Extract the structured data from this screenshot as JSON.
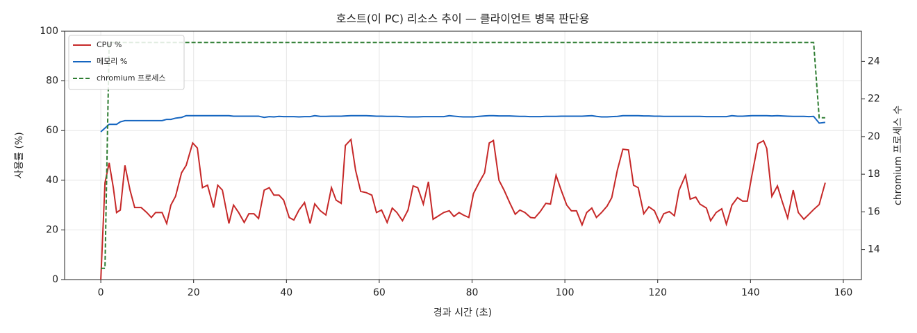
{
  "chart_data": {
    "type": "line",
    "title": "호스트(이 PC) 리소스 추이 — 클라이언트 병목 판단용",
    "xlabel": "경과 시간 (초)",
    "ylabel": "사용률 (%)",
    "y2label": "chromium 프로세스 수",
    "x": [
      0,
      0.9,
      1.8,
      2.7,
      3.4,
      4.2,
      5.2,
      6.3,
      7.3,
      8.7,
      9.9,
      10.9,
      11.8,
      13.2,
      14.2,
      15.1,
      16.1,
      17.4,
      18.4,
      19.8,
      20.8,
      21.9,
      23.0,
      24.3,
      25.2,
      26.2,
      27.6,
      28.6,
      29.7,
      30.9,
      31.9,
      33.0,
      34.0,
      35.2,
      36.3,
      37.3,
      38.4,
      39.4,
      40.6,
      41.6,
      42.7,
      43.9,
      45.1,
      46.1,
      47.3,
      48.5,
      49.7,
      50.7,
      51.8,
      52.7,
      53.9,
      54.9,
      56.0,
      57.2,
      58.4,
      59.4,
      60.5,
      61.7,
      62.8,
      63.8,
      65.0,
      66.2,
      67.3,
      68.3,
      69.5,
      70.6,
      71.6,
      72.8,
      73.9,
      75.1,
      76.1,
      77.2,
      78.1,
      79.3,
      80.3,
      81.5,
      82.7,
      83.7,
      84.6,
      85.8,
      86.9,
      88.1,
      89.3,
      90.3,
      91.4,
      92.6,
      93.5,
      94.7,
      95.9,
      96.9,
      98.1,
      99.2,
      100.4,
      101.4,
      102.5,
      103.7,
      104.7,
      105.8,
      106.8,
      107.9,
      109.1,
      110.1,
      111.3,
      112.5,
      113.7,
      114.8,
      115.8,
      117.0,
      118.1,
      119.3,
      120.4,
      121.3,
      122.5,
      123.6,
      124.6,
      126.0,
      127.0,
      128.2,
      129.1,
      130.5,
      131.4,
      132.6,
      133.8,
      134.8,
      136.0,
      137.2,
      138.3,
      139.3,
      140.3,
      141.6,
      142.8,
      143.5,
      144.6,
      145.8,
      146.8,
      148.0,
      149.2,
      150.3,
      151.5,
      152.6,
      153.6,
      154.8,
      156.1
    ],
    "series": [
      {
        "name": "CPU %",
        "color": "#c62828",
        "linestyle": "solid",
        "values": [
          0,
          39,
          47,
          37,
          27,
          28,
          46,
          36,
          29,
          29,
          27,
          25,
          27,
          27,
          22.6,
          30,
          33.5,
          43,
          46,
          55,
          53,
          37,
          38,
          29,
          38,
          36,
          22.6,
          30,
          27,
          23,
          26.5,
          26.5,
          24.6,
          36,
          37,
          34,
          34,
          32,
          25,
          24,
          28,
          31,
          22.6,
          30.5,
          27.7,
          26,
          37,
          32,
          30.7,
          54,
          56.4,
          44,
          35.5,
          35,
          34,
          27,
          28,
          23,
          28.8,
          27,
          23.7,
          28,
          37.7,
          37,
          30.4,
          39.4,
          24.3,
          25.7,
          27,
          27.7,
          25.4,
          27,
          26,
          25,
          34.6,
          39,
          43,
          55,
          56,
          40,
          36,
          31,
          26.3,
          28,
          27,
          25,
          24.8,
          27.4,
          30.7,
          30.4,
          42,
          36,
          30,
          27.7,
          27.7,
          22,
          27,
          28.8,
          25,
          27,
          29.6,
          33,
          44,
          52.5,
          52.2,
          38,
          37,
          26.5,
          29.3,
          27.7,
          23,
          26.5,
          27.4,
          25.7,
          36,
          42,
          32.4,
          33.2,
          30.4,
          28.8,
          23.7,
          27,
          28.5,
          22.3,
          30,
          33,
          31.6,
          31.6,
          42,
          54.7,
          55.9,
          52.8,
          33.5,
          37.7,
          31.6,
          24.8,
          36,
          27,
          24.3,
          26.3,
          28.2,
          30.2,
          39
        ]
      },
      {
        "name": "메모리 %",
        "color": "#1565c0",
        "linestyle": "solid",
        "values": [
          59.5,
          61,
          62.5,
          62.5,
          62.5,
          63.5,
          64,
          64,
          64,
          64,
          64,
          64,
          64,
          64,
          64.5,
          64.5,
          65,
          65.3,
          66,
          66,
          66,
          66,
          66,
          66,
          66,
          66,
          66,
          65.8,
          65.8,
          65.8,
          65.8,
          65.8,
          65.8,
          65.3,
          65.6,
          65.5,
          65.7,
          65.6,
          65.6,
          65.6,
          65.5,
          65.6,
          65.6,
          66,
          65.7,
          65.7,
          65.8,
          65.8,
          65.8,
          65.9,
          66,
          66,
          66,
          66,
          65.9,
          65.8,
          65.8,
          65.7,
          65.7,
          65.7,
          65.6,
          65.5,
          65.5,
          65.5,
          65.6,
          65.6,
          65.6,
          65.6,
          65.6,
          66,
          65.8,
          65.6,
          65.5,
          65.5,
          65.5,
          65.7,
          65.9,
          66,
          66,
          65.9,
          65.9,
          65.9,
          65.8,
          65.7,
          65.7,
          65.6,
          65.6,
          65.6,
          65.7,
          65.7,
          65.7,
          65.8,
          65.8,
          65.8,
          65.8,
          65.8,
          65.9,
          66,
          65.7,
          65.5,
          65.5,
          65.6,
          65.7,
          66,
          66,
          66,
          66,
          65.9,
          65.9,
          65.8,
          65.8,
          65.7,
          65.7,
          65.7,
          65.7,
          65.7,
          65.7,
          65.7,
          65.7,
          65.6,
          65.6,
          65.6,
          65.6,
          65.6,
          66,
          65.8,
          65.8,
          65.9,
          66,
          66,
          66,
          66,
          65.9,
          66,
          65.9,
          65.8,
          65.7,
          65.7,
          65.7,
          65.6,
          65.7,
          63,
          63.3
        ]
      },
      {
        "name": "chromium 프로세스",
        "color": "#2e7d32",
        "linestyle": "dashed",
        "axis": "y2",
        "values": [
          13,
          13,
          25,
          25,
          25,
          25,
          25,
          25,
          25,
          25,
          25,
          25,
          25,
          25,
          25,
          25,
          25,
          25,
          25,
          25,
          25,
          25,
          25,
          25,
          25,
          25,
          25,
          25,
          25,
          25,
          25,
          25,
          25,
          25,
          25,
          25,
          25,
          25,
          25,
          25,
          25,
          25,
          25,
          25,
          25,
          25,
          25,
          25,
          25,
          25,
          25,
          25,
          25,
          25,
          25,
          25,
          25,
          25,
          25,
          25,
          25,
          25,
          25,
          25,
          25,
          25,
          25,
          25,
          25,
          25,
          25,
          25,
          25,
          25,
          25,
          25,
          25,
          25,
          25,
          25,
          25,
          25,
          25,
          25,
          25,
          25,
          25,
          25,
          25,
          25,
          25,
          25,
          25,
          25,
          25,
          25,
          25,
          25,
          25,
          25,
          25,
          25,
          25,
          25,
          25,
          25,
          25,
          25,
          25,
          25,
          25,
          25,
          25,
          25,
          25,
          25,
          25,
          25,
          25,
          25,
          25,
          25,
          25,
          25,
          25,
          25,
          25,
          25,
          25,
          25,
          25,
          25,
          25,
          25,
          25,
          25,
          25,
          25,
          25,
          25,
          25,
          21,
          21
        ]
      }
    ],
    "xlim": [
      -7.8,
      163.9
    ],
    "xticks": [
      0,
      20,
      40,
      60,
      80,
      100,
      120,
      140,
      160
    ],
    "ylim": [
      0,
      100
    ],
    "yticks": [
      0,
      20,
      40,
      60,
      80,
      100
    ],
    "y2lim": [
      12.4,
      25.6
    ],
    "y2ticks": [
      14,
      16,
      18,
      20,
      22,
      24
    ],
    "grid": true,
    "legend": "upper left"
  }
}
